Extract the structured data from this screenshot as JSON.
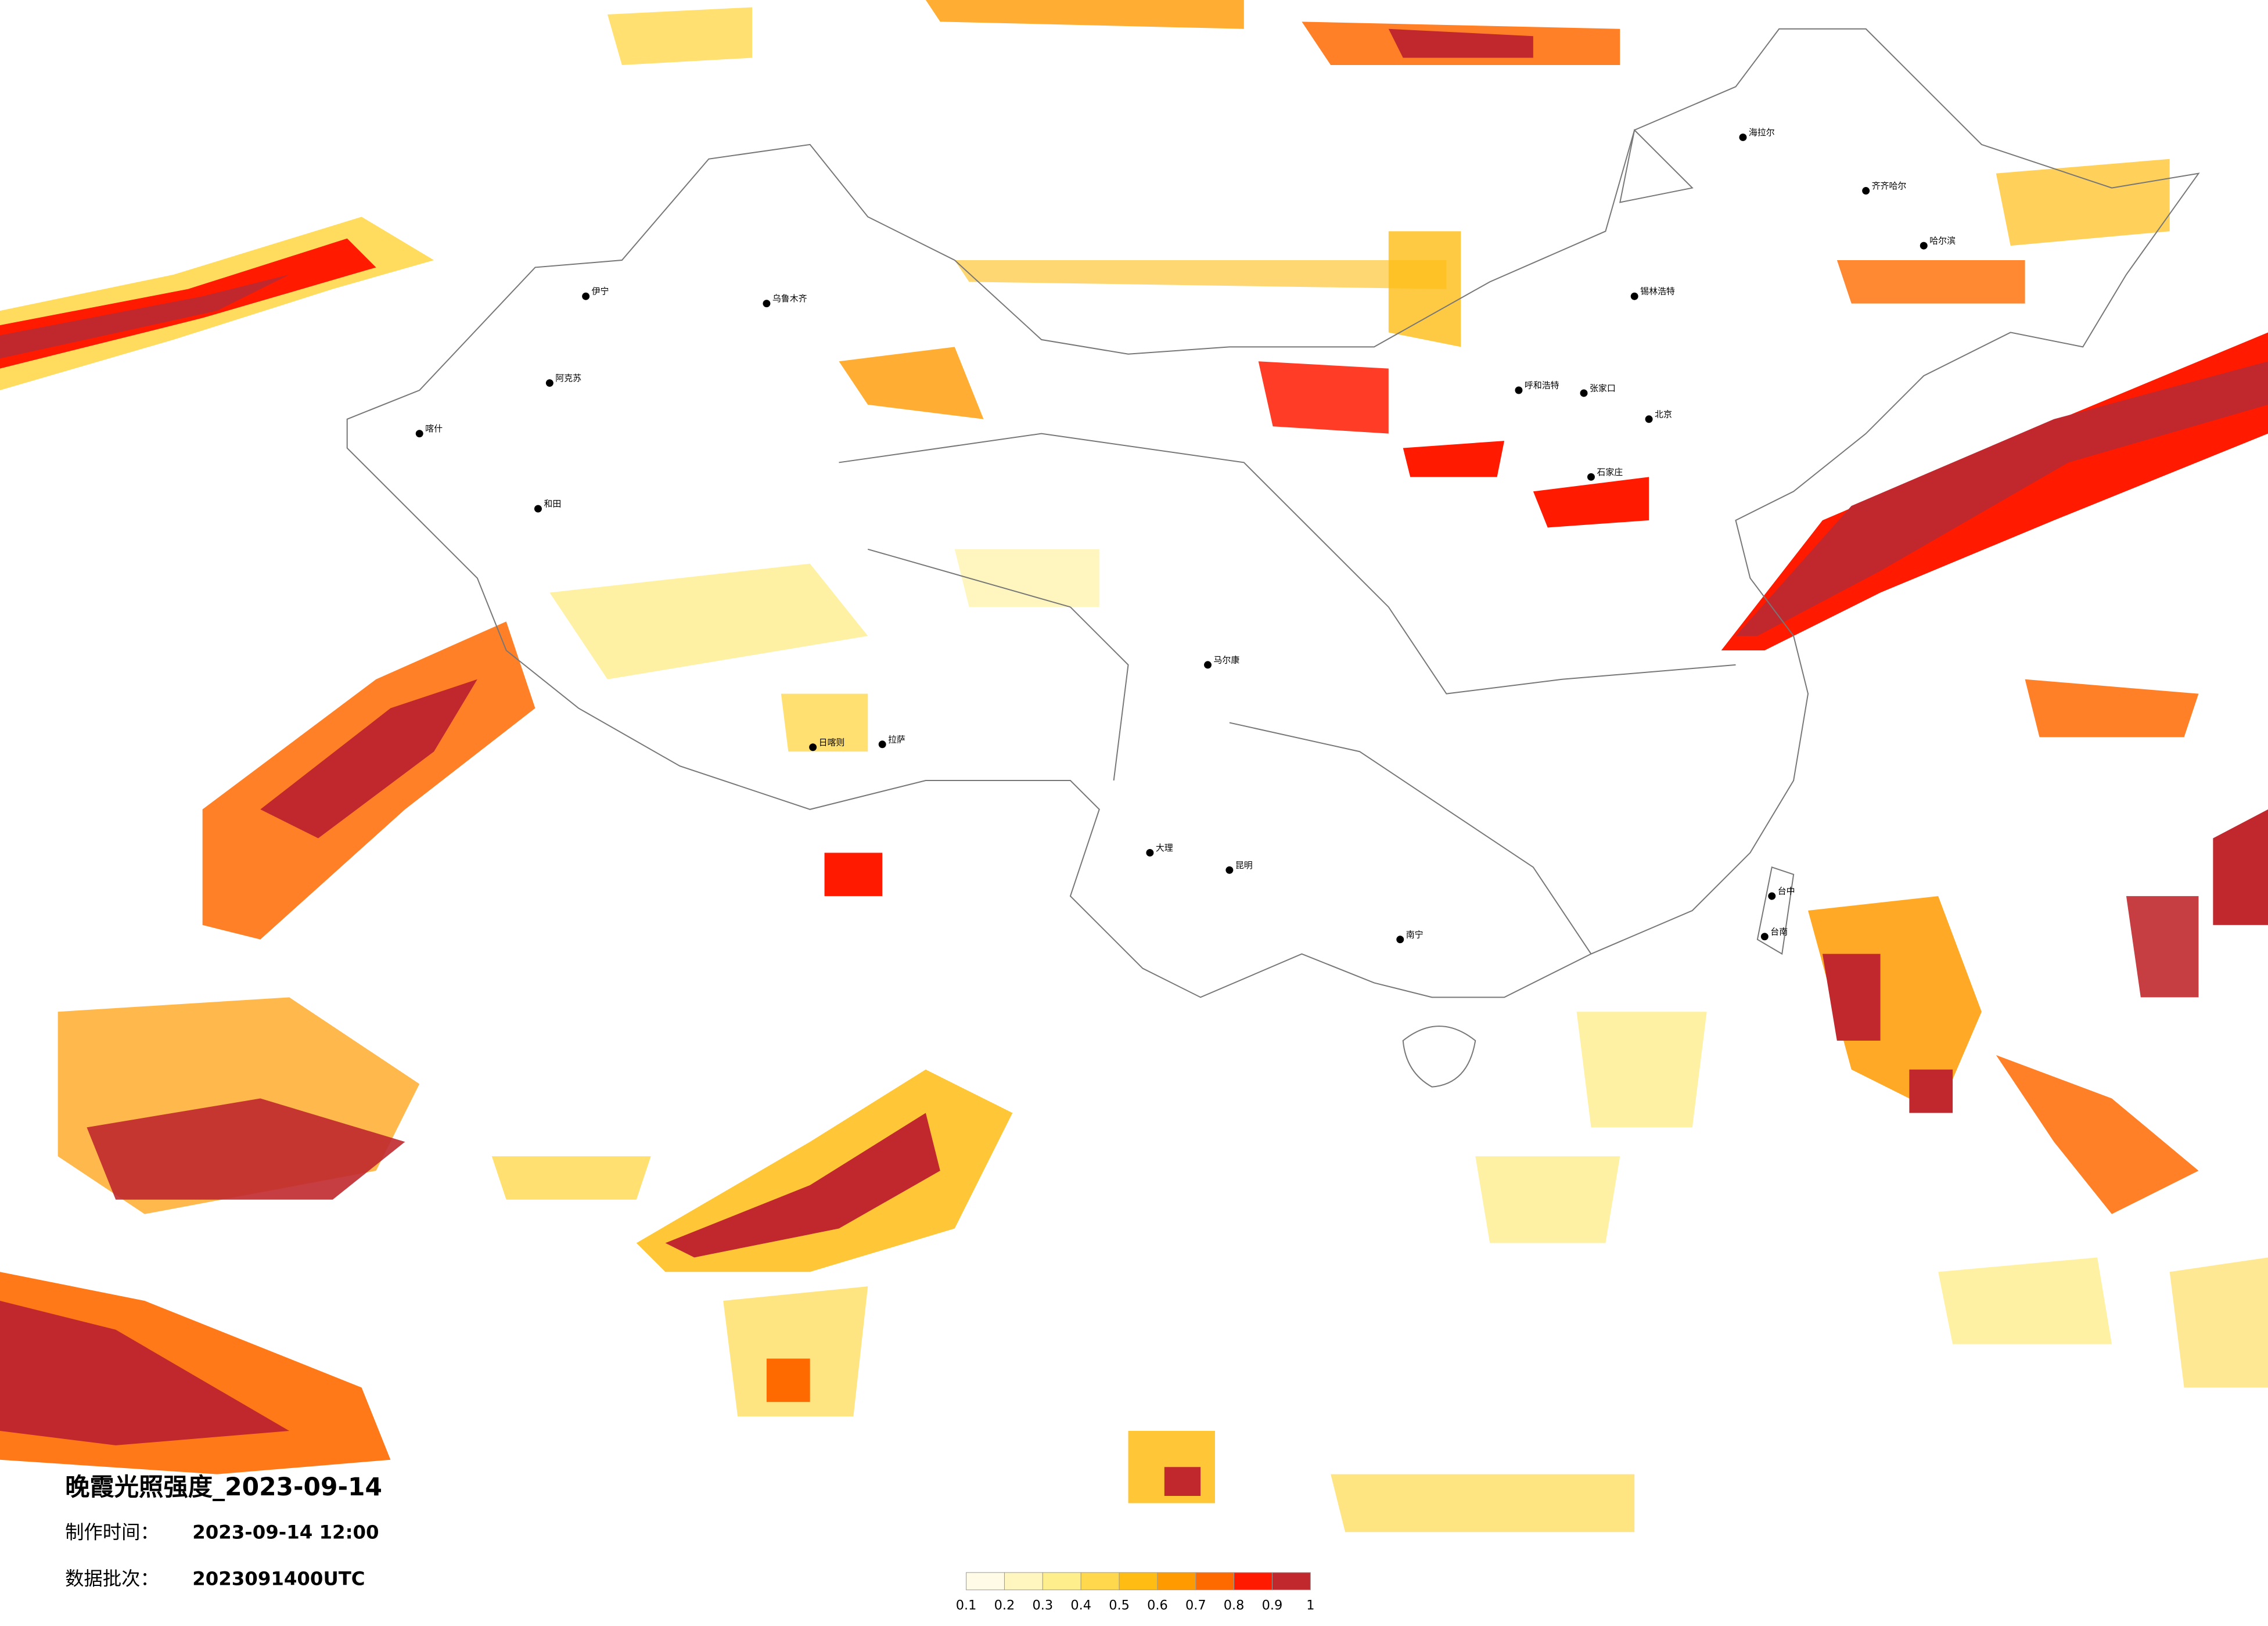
{
  "header": {
    "title": "晚霞光照强度_2023-09-14",
    "made_label": "制作时间：",
    "made_value": "2023-09-14 12:00",
    "batch_label": "数据批次：",
    "batch_value": "2023091400UTC"
  },
  "colorbar": {
    "ticks": [
      0.1,
      0.2,
      0.3,
      0.4,
      0.5,
      0.6,
      0.7,
      0.8,
      0.9,
      1
    ],
    "colors": [
      "#fffbe6",
      "#fff6bf",
      "#ffee8c",
      "#ffd84d",
      "#ffbd14",
      "#ff9a00",
      "#ff6a00",
      "#ff1a00",
      "#c0282d"
    ]
  },
  "cities": [
    "乌鲁木齐",
    "喀什",
    "和田",
    "阿克苏",
    "伊宁",
    "拉萨",
    "日喀则",
    "马尔康",
    "大理",
    "昆明",
    "南宁",
    "呼和浩特",
    "张家口",
    "北京",
    "石家庄",
    "锡林浩特",
    "海拉尔",
    "齐齐哈尔",
    "哈尔滨",
    "台中",
    "台南"
  ]
}
